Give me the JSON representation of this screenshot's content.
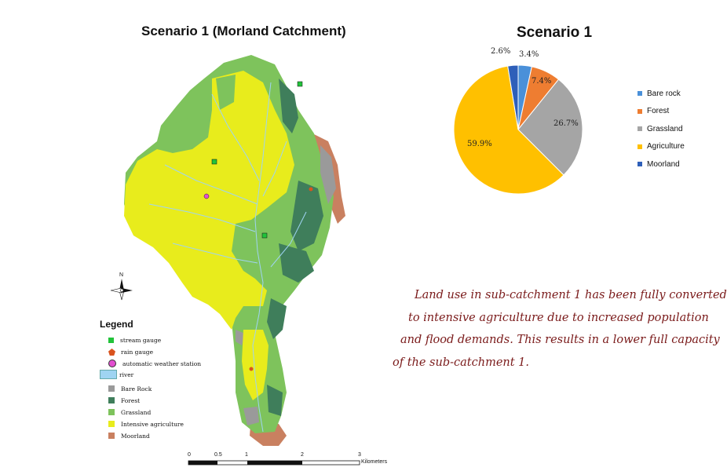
{
  "map": {
    "title": "Scenario 1 (Morland Catchment)",
    "north_label": "N",
    "legend": {
      "title": "Legend",
      "items": [
        {
          "label": "stream gauge",
          "kind": "square",
          "color": "#22c33a"
        },
        {
          "label": "rain gauge",
          "kind": "pentagon",
          "color": "#d9531e"
        },
        {
          "label": "automatic weather station",
          "kind": "circle",
          "color": "#e24fd0"
        },
        {
          "label": "river",
          "kind": "rect",
          "color": "#9fd4f2"
        },
        {
          "label": "Bare Rock",
          "kind": "square",
          "color": "#9a9a9a"
        },
        {
          "label": "Forest",
          "kind": "square",
          "color": "#3f7e5b"
        },
        {
          "label": "Grassland",
          "kind": "square",
          "color": "#7ec35c"
        },
        {
          "label": "Intensive agriculture",
          "kind": "square",
          "color": "#e8ec1c"
        },
        {
          "label": "Moorland",
          "kind": "square",
          "color": "#c98060"
        }
      ]
    },
    "scale": {
      "ticks": [
        "0",
        "0.5",
        "1",
        "2",
        "3"
      ],
      "unit": "Kilometers"
    }
  },
  "pie": {
    "title": "Scenario 1",
    "slices": [
      {
        "name": "Bare rock",
        "value": 3.4,
        "label": "3.4%",
        "color": "#4a90d9"
      },
      {
        "name": "Forest",
        "value": 7.4,
        "label": "7.4%",
        "color": "#ee7d31"
      },
      {
        "name": "Grassland",
        "value": 26.7,
        "label": "26.7%",
        "color": "#a5a5a5"
      },
      {
        "name": "Agriculture",
        "value": 59.9,
        "label": "59.9%",
        "color": "#ffc000"
      },
      {
        "name": "Moorland",
        "value": 2.6,
        "label": "2.6%",
        "color": "#2e5fb9"
      }
    ]
  },
  "note": {
    "lines": [
      "Land use in sub-catchment 1 has been fully converted",
      "to intensive agriculture due to increased population",
      "and flood demands. This results in a lower full capacity",
      "of the sub-catchment 1."
    ]
  }
}
